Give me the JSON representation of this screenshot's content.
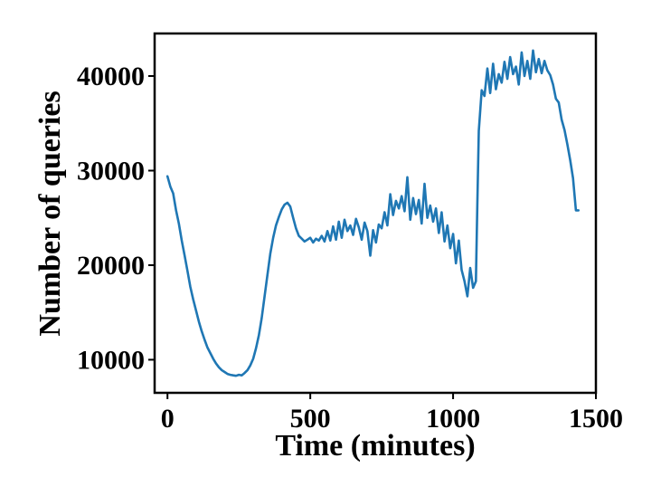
{
  "chart_data": {
    "type": "line",
    "title": "",
    "xlabel": "Time (minutes)",
    "ylabel": "Number of queries",
    "xlim": [
      -45,
      1500
    ],
    "ylim": [
      6500,
      44500
    ],
    "xticks": [
      0,
      500,
      1000,
      1500
    ],
    "yticks": [
      10000,
      20000,
      30000,
      40000
    ],
    "xtick_labels": [
      "0",
      "500",
      "1000",
      "1500"
    ],
    "ytick_labels": [
      "10000",
      "20000",
      "30000",
      "40000"
    ],
    "grid": false,
    "legend": "none",
    "line_color": "#1f77b4",
    "series": [
      {
        "x": [
          0,
          10,
          20,
          30,
          40,
          50,
          60,
          70,
          80,
          90,
          100,
          110,
          120,
          130,
          140,
          150,
          160,
          170,
          180,
          190,
          200,
          210,
          220,
          230,
          240,
          250,
          260,
          270,
          280,
          290,
          300,
          310,
          320,
          330,
          340,
          350,
          360,
          370,
          380,
          390,
          400,
          410,
          420,
          430,
          440,
          450,
          460,
          470,
          480,
          490,
          500,
          510,
          520,
          530,
          540,
          550,
          560,
          570,
          580,
          590,
          600,
          610,
          620,
          630,
          640,
          650,
          660,
          670,
          680,
          690,
          700,
          710,
          720,
          730,
          740,
          750,
          760,
          770,
          780,
          790,
          800,
          810,
          820,
          830,
          840,
          850,
          860,
          870,
          880,
          890,
          900,
          910,
          920,
          930,
          940,
          950,
          960,
          970,
          980,
          990,
          1000,
          1010,
          1020,
          1030,
          1040,
          1050,
          1060,
          1070,
          1080,
          1085,
          1090,
          1100,
          1110,
          1120,
          1130,
          1140,
          1150,
          1160,
          1170,
          1180,
          1190,
          1200,
          1210,
          1220,
          1230,
          1240,
          1250,
          1260,
          1270,
          1280,
          1290,
          1300,
          1310,
          1320,
          1330,
          1340,
          1350,
          1360,
          1370,
          1380,
          1390,
          1400,
          1410,
          1420,
          1430,
          1439
        ],
        "y": [
          29400,
          28300,
          27600,
          25800,
          24400,
          22600,
          21000,
          19400,
          17700,
          16400,
          15200,
          14000,
          13000,
          12100,
          11300,
          10700,
          10100,
          9600,
          9200,
          8900,
          8700,
          8500,
          8400,
          8350,
          8300,
          8400,
          8350,
          8600,
          8900,
          9400,
          10100,
          11200,
          12600,
          14400,
          16700,
          19000,
          21200,
          22900,
          24200,
          25100,
          25900,
          26400,
          26600,
          26200,
          25000,
          23900,
          23100,
          22800,
          22500,
          22700,
          22900,
          22400,
          22800,
          22600,
          23100,
          22500,
          23600,
          22600,
          24100,
          22700,
          24600,
          22900,
          24800,
          23600,
          24200,
          23200,
          24900,
          24000,
          22700,
          24500,
          23600,
          21000,
          23700,
          22400,
          24300,
          23900,
          25600,
          24200,
          27500,
          25300,
          26800,
          26000,
          27300,
          25700,
          29300,
          24800,
          27100,
          25400,
          26900,
          24400,
          28600,
          25000,
          26300,
          24600,
          26000,
          23400,
          25600,
          22500,
          24200,
          21800,
          23300,
          20200,
          22600,
          19500,
          18300,
          16700,
          19700,
          17600,
          18300,
          26500,
          34200,
          38500,
          37900,
          40800,
          38200,
          41300,
          38600,
          40200,
          39300,
          41500,
          39700,
          42000,
          40200,
          41000,
          39100,
          42500,
          40000,
          41600,
          39700,
          42700,
          40400,
          41800,
          40300,
          41600,
          40600,
          40100,
          39100,
          37600,
          37200,
          35400,
          34300,
          32800,
          31100,
          29200,
          25800,
          25800
        ]
      }
    ]
  }
}
